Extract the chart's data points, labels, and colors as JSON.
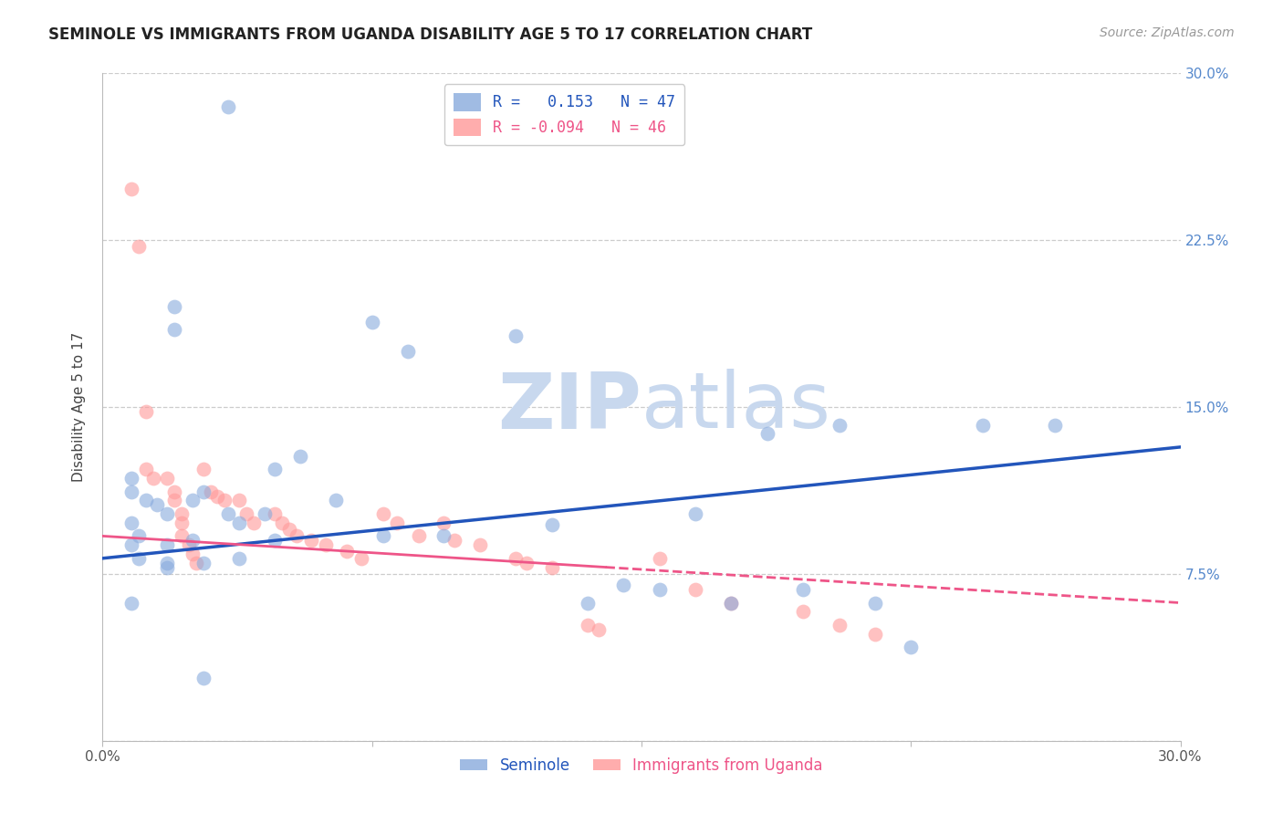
{
  "title": "SEMINOLE VS IMMIGRANTS FROM UGANDA DISABILITY AGE 5 TO 17 CORRELATION CHART",
  "source": "Source: ZipAtlas.com",
  "ylabel": "Disability Age 5 to 17",
  "x_min": 0.0,
  "x_max": 0.3,
  "y_min": 0.0,
  "y_max": 0.3,
  "blue_R": 0.153,
  "blue_N": 47,
  "pink_R": -0.094,
  "pink_N": 46,
  "legend_label_blue": "Seminole",
  "legend_label_pink": "Immigrants from Uganda",
  "blue_color": "#88AADD",
  "pink_color": "#FF9999",
  "blue_line_color": "#2255BB",
  "pink_line_color": "#EE5588",
  "watermark_zip": "ZIP",
  "watermark_atlas": "atlas",
  "grid_color": "#CCCCCC",
  "background_color": "#FFFFFF",
  "title_fontsize": 12,
  "axis_label_fontsize": 11,
  "tick_fontsize": 11,
  "watermark_fontsize": 62,
  "watermark_color": "#C8D8EE",
  "source_fontsize": 10,
  "blue_line_x0": 0.0,
  "blue_line_y0": 0.082,
  "blue_line_x1": 0.3,
  "blue_line_y1": 0.132,
  "pink_line_x0": 0.0,
  "pink_line_y0": 0.092,
  "pink_line_x1": 0.3,
  "pink_line_y1": 0.062,
  "blue_scatter_x": [
    0.035,
    0.02,
    0.02,
    0.075,
    0.115,
    0.085,
    0.008,
    0.008,
    0.012,
    0.015,
    0.018,
    0.025,
    0.028,
    0.035,
    0.038,
    0.045,
    0.048,
    0.055,
    0.065,
    0.008,
    0.01,
    0.018,
    0.025,
    0.048,
    0.078,
    0.095,
    0.125,
    0.165,
    0.185,
    0.205,
    0.135,
    0.155,
    0.175,
    0.225,
    0.245,
    0.008,
    0.01,
    0.018,
    0.028,
    0.038,
    0.018,
    0.145,
    0.195,
    0.215,
    0.265,
    0.008,
    0.028
  ],
  "blue_scatter_y": [
    0.285,
    0.195,
    0.185,
    0.188,
    0.182,
    0.175,
    0.118,
    0.112,
    0.108,
    0.106,
    0.102,
    0.108,
    0.112,
    0.102,
    0.098,
    0.102,
    0.122,
    0.128,
    0.108,
    0.098,
    0.092,
    0.088,
    0.09,
    0.09,
    0.092,
    0.092,
    0.097,
    0.102,
    0.138,
    0.142,
    0.062,
    0.068,
    0.062,
    0.042,
    0.142,
    0.088,
    0.082,
    0.08,
    0.08,
    0.082,
    0.078,
    0.07,
    0.068,
    0.062,
    0.142,
    0.062,
    0.028
  ],
  "pink_scatter_x": [
    0.008,
    0.01,
    0.012,
    0.012,
    0.014,
    0.018,
    0.02,
    0.02,
    0.022,
    0.022,
    0.022,
    0.024,
    0.025,
    0.026,
    0.028,
    0.03,
    0.032,
    0.034,
    0.038,
    0.04,
    0.042,
    0.048,
    0.05,
    0.052,
    0.054,
    0.058,
    0.062,
    0.068,
    0.072,
    0.078,
    0.082,
    0.088,
    0.095,
    0.098,
    0.105,
    0.115,
    0.118,
    0.125,
    0.135,
    0.138,
    0.155,
    0.165,
    0.175,
    0.195,
    0.205,
    0.215
  ],
  "pink_scatter_y": [
    0.248,
    0.222,
    0.148,
    0.122,
    0.118,
    0.118,
    0.112,
    0.108,
    0.102,
    0.098,
    0.092,
    0.088,
    0.084,
    0.08,
    0.122,
    0.112,
    0.11,
    0.108,
    0.108,
    0.102,
    0.098,
    0.102,
    0.098,
    0.095,
    0.092,
    0.09,
    0.088,
    0.085,
    0.082,
    0.102,
    0.098,
    0.092,
    0.098,
    0.09,
    0.088,
    0.082,
    0.08,
    0.078,
    0.052,
    0.05,
    0.082,
    0.068,
    0.062,
    0.058,
    0.052,
    0.048
  ]
}
